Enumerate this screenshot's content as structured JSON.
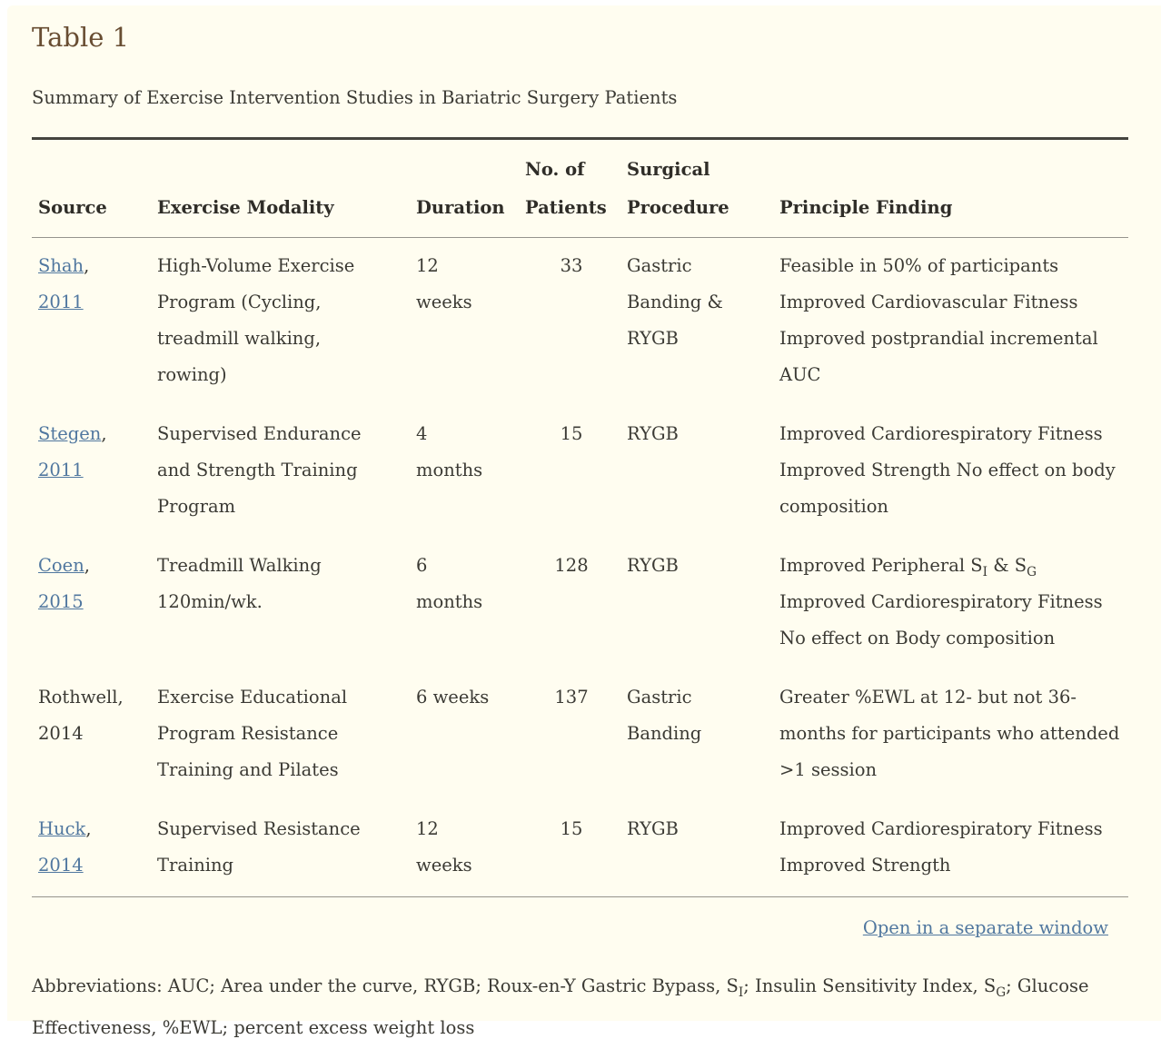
{
  "colors": {
    "background": "#FFFDF0",
    "title": "#684D32",
    "text": "#3B3A34",
    "link": "#50779F",
    "border_dark": "#45443E",
    "border_light": "#96948D"
  },
  "page": {
    "title": "Table 1",
    "caption": "Summary of Exercise Intervention Studies in Bariatric Surgery Patients",
    "open_link_label": "Open in a separate window",
    "abbreviations": "Abbreviations: AUC; Area under the curve, RYGB; Roux-en-Y Gastric Bypass, S~I~; Insulin Sensitivity Index, S~G~; Glucose Effectiveness, %EWL; percent excess weight loss"
  },
  "table": {
    "columns": [
      {
        "label": "Source"
      },
      {
        "label": "Exercise Modality"
      },
      {
        "label": "Duration"
      },
      {
        "label": "No. of\nPatients"
      },
      {
        "label": "Surgical\nProcedure"
      },
      {
        "label": "Principle Finding"
      }
    ],
    "rows": [
      {
        "source": {
          "name": "Shah",
          "year": "2011",
          "link": true
        },
        "modality": "High-Volume Exercise Program (Cycling, treadmill walking, rowing)",
        "duration": "12 weeks",
        "patients": "33",
        "procedure": "Gastric Banding & RYGB",
        "finding": "Feasible in 50% of participants Improved Cardiovascular Fitness Improved postprandial incremental AUC"
      },
      {
        "source": {
          "name": "Stegen",
          "year": "2011",
          "link": true
        },
        "modality": "Supervised Endurance and Strength Training Program",
        "duration": "4 months",
        "patients": "15",
        "procedure": "RYGB",
        "finding": "Improved Cardiorespiratory Fitness Improved Strength No effect on body composition"
      },
      {
        "source": {
          "name": "Coen",
          "year": "2015",
          "link": true
        },
        "modality": "Treadmill Walking 120min/wk.",
        "duration": "6 months",
        "patients": "128",
        "procedure": "RYGB",
        "finding": "Improved Peripheral S~I~ & S~G~ Improved Cardiorespiratory Fitness No effect on Body composition"
      },
      {
        "source": {
          "name": "Rothwell",
          "year": "2014",
          "link": false
        },
        "modality": "Exercise Educational Program Resistance Training and Pilates",
        "duration": "6 weeks",
        "patients": "137",
        "procedure": "Gastric Banding",
        "finding": "Greater %EWL at 12- but not 36- months for participants who attended >1 session"
      },
      {
        "source": {
          "name": "Huck",
          "year": "2014",
          "link": true
        },
        "modality": "Supervised Resistance Training",
        "duration": "12 weeks",
        "patients": "15",
        "procedure": "RYGB",
        "finding": "Improved Cardiorespiratory Fitness Improved Strength"
      }
    ]
  }
}
